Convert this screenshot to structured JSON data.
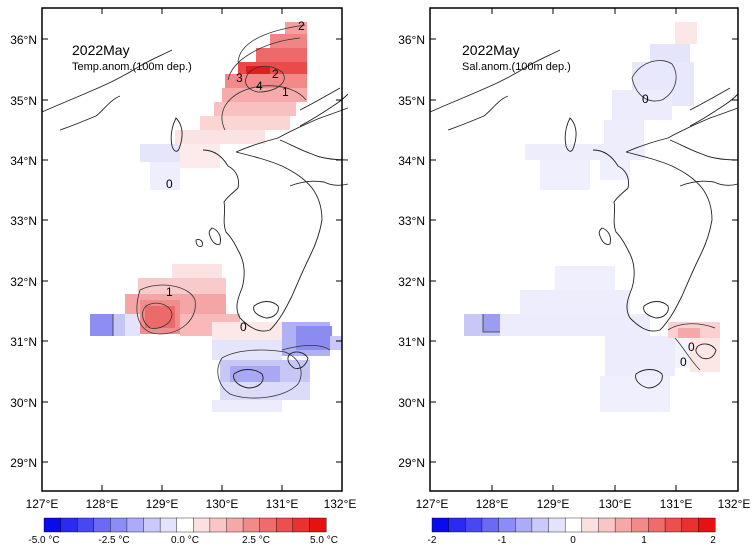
{
  "panels": [
    {
      "id": "temp",
      "title": "2022May",
      "subtitle": "Temp.anom.(100m dep.)",
      "lat_labels": [
        "36°N",
        "35°N",
        "34°N",
        "33°N",
        "32°N",
        "31°N",
        "30°N",
        "29°N"
      ],
      "lon_labels": [
        "127°E",
        "128°E",
        "129°E",
        "130°E",
        "131°E",
        "132°E"
      ],
      "contour_labels": [
        "2",
        "3",
        "4",
        "2",
        "1",
        "1",
        "0",
        "0"
      ],
      "colorbar_labels": [
        "-5.0 °C",
        "-2.5 °C",
        "0.0 °C",
        "2.5 °C",
        "5.0 °C"
      ],
      "colorbar_colors": [
        "#0a0aee",
        "#2a2af0",
        "#4848f2",
        "#6a6af4",
        "#8c8cf6",
        "#ababf8",
        "#c9c9fa",
        "#e3e3fc",
        "#ffffff",
        "#fce0e0",
        "#f9c6c6",
        "#f6a8a8",
        "#f38a8a",
        "#f06c6c",
        "#ed4e4e",
        "#ea3030",
        "#e61212"
      ]
    },
    {
      "id": "sal",
      "title": "2022May",
      "subtitle": "Sal.anom.(100m dep.)",
      "lat_labels": [
        "36°N",
        "35°N",
        "34°N",
        "33°N",
        "32°N",
        "31°N",
        "30°N",
        "29°N"
      ],
      "lon_labels": [
        "127°E",
        "128°E",
        "129°E",
        "130°E",
        "131°E",
        "132°E"
      ],
      "contour_labels": [
        "0",
        "0",
        "0"
      ],
      "colorbar_labels": [
        "-2",
        "-1",
        "0",
        "1",
        "2"
      ],
      "colorbar_colors": [
        "#0a0aee",
        "#2a2af0",
        "#4848f2",
        "#6a6af4",
        "#8c8cf6",
        "#ababf8",
        "#c9c9fa",
        "#e3e3fc",
        "#ffffff",
        "#fce0e0",
        "#f9c6c6",
        "#f6a8a8",
        "#f38a8a",
        "#f06c6c",
        "#ed4e4e",
        "#ea3030",
        "#e61212"
      ]
    }
  ]
}
